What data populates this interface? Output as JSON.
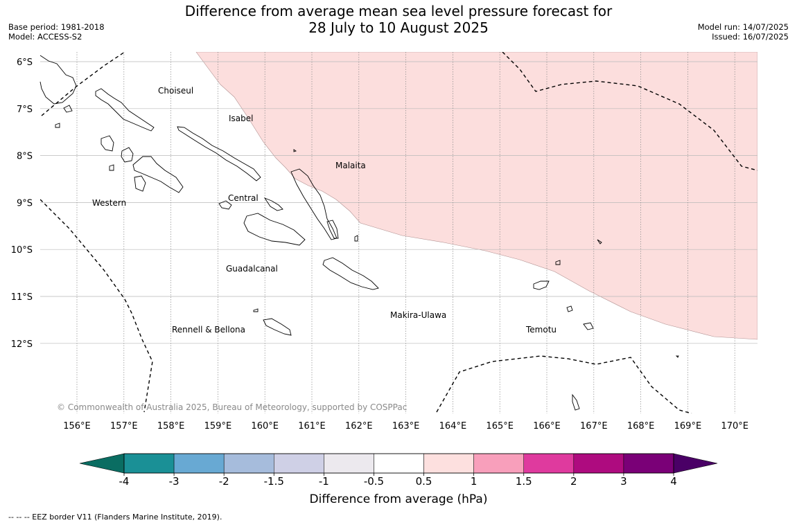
{
  "title_line1": "Difference from average mean sea level pressure forecast for",
  "title_line2": "28 July to 10 August 2025",
  "meta_left": {
    "base_period": "Base period: 1981-2018",
    "model": "Model: ACCESS-S2"
  },
  "meta_right": {
    "model_run": "Model run: 14/07/2025",
    "issued": "Issued: 16/07/2025"
  },
  "lat_labels": [
    "6°S",
    "7°S",
    "8°S",
    "9°S",
    "10°S",
    "11°S",
    "12°S"
  ],
  "lon_labels": [
    "156°E",
    "157°E",
    "158°E",
    "159°E",
    "160°E",
    "161°E",
    "162°E",
    "163°E",
    "164°E",
    "165°E",
    "166°E",
    "167°E",
    "168°E",
    "169°E",
    "170°E"
  ],
  "provinces": [
    "Choiseul",
    "Isabel",
    "Malaita",
    "Western",
    "Central",
    "Guadalcanal",
    "Makira-Ulawa",
    "Rennell & Bellona",
    "Temotu"
  ],
  "copyright": "© Commonwealth of Australia 2025, Bureau of Meteorology, supported by COSPPac",
  "anomaly_region_band": "0.5 to 1",
  "colorbar": {
    "ticks": [
      "-4",
      "-3",
      "-2",
      "-1.5",
      "-1",
      "-0.5",
      "0.5",
      "1",
      "1.5",
      "2",
      "3",
      "4"
    ],
    "colors": [
      "#1a9096",
      "#68a9d3",
      "#a6bcdc",
      "#cfd0e6",
      "#ece9ee",
      "#ffffff",
      "#fde0df",
      "#f89fbb",
      "#df3a9e",
      "#ae0b7f",
      "#7a0077"
    ],
    "under_color": "#0a6d62",
    "over_color": "#4a0066",
    "anomaly_fill": "#fcdedd",
    "label": "Difference from average (hPa)"
  },
  "footnote": "--  --  -- EEZ border V11 (Flanders Marine Institute, 2019)."
}
